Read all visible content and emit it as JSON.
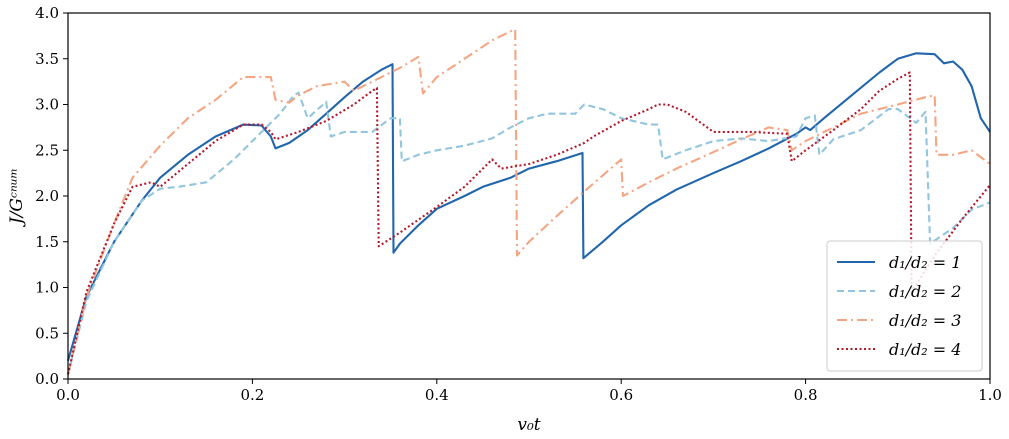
{
  "chart_data": {
    "type": "line",
    "xlabel": "v₀t",
    "ylabel": "J/Gᶜⁿᵘᵐ",
    "xlim": [
      0.0,
      1.0
    ],
    "ylim": [
      0.0,
      4.0
    ],
    "x_ticks": [
      "0.0",
      "0.2",
      "0.4",
      "0.6",
      "0.8",
      "1.0"
    ],
    "y_ticks": [
      "0.0",
      "0.5",
      "1.0",
      "1.5",
      "2.0",
      "2.5",
      "3.0",
      "3.5",
      "4.0"
    ],
    "grid": false,
    "legend_position": "bottom-right",
    "series": [
      {
        "name": "d₁/d₂ = 1",
        "color": "#2166ac",
        "dash": "solid",
        "x": [
          0.0,
          0.02,
          0.05,
          0.08,
          0.1,
          0.13,
          0.16,
          0.19,
          0.21,
          0.22,
          0.225,
          0.24,
          0.26,
          0.28,
          0.3,
          0.32,
          0.34,
          0.352,
          0.353,
          0.36,
          0.38,
          0.4,
          0.43,
          0.45,
          0.48,
          0.5,
          0.53,
          0.558,
          0.559,
          0.58,
          0.6,
          0.63,
          0.66,
          0.7,
          0.73,
          0.76,
          0.79,
          0.8,
          0.805,
          0.82,
          0.85,
          0.88,
          0.9,
          0.92,
          0.94,
          0.95,
          0.96,
          0.97,
          0.98,
          0.99,
          1.0
        ],
        "y": [
          0.2,
          0.9,
          1.5,
          1.95,
          2.2,
          2.45,
          2.65,
          2.78,
          2.77,
          2.65,
          2.52,
          2.58,
          2.72,
          2.9,
          3.08,
          3.25,
          3.38,
          3.44,
          1.38,
          1.48,
          1.68,
          1.86,
          2.0,
          2.1,
          2.2,
          2.3,
          2.38,
          2.47,
          1.32,
          1.5,
          1.68,
          1.9,
          2.07,
          2.25,
          2.38,
          2.52,
          2.68,
          2.75,
          2.72,
          2.85,
          3.1,
          3.35,
          3.5,
          3.56,
          3.55,
          3.45,
          3.47,
          3.38,
          3.2,
          2.85,
          2.7
        ]
      },
      {
        "name": "d₁/d₂ = 2",
        "color": "#92c5de",
        "dash": "dashed",
        "x": [
          0.0,
          0.02,
          0.05,
          0.08,
          0.1,
          0.12,
          0.15,
          0.18,
          0.21,
          0.23,
          0.245,
          0.25,
          0.26,
          0.28,
          0.285,
          0.3,
          0.33,
          0.35,
          0.36,
          0.362,
          0.38,
          0.4,
          0.43,
          0.46,
          0.48,
          0.5,
          0.52,
          0.55,
          0.56,
          0.58,
          0.6,
          0.63,
          0.64,
          0.645,
          0.67,
          0.7,
          0.73,
          0.76,
          0.79,
          0.8,
          0.81,
          0.815,
          0.83,
          0.86,
          0.89,
          0.9,
          0.92,
          0.93,
          0.935,
          0.96,
          0.98,
          1.0
        ],
        "y": [
          0.05,
          0.85,
          1.5,
          1.95,
          2.08,
          2.1,
          2.15,
          2.4,
          2.7,
          2.9,
          3.1,
          3.13,
          2.85,
          3.03,
          2.65,
          2.7,
          2.7,
          2.85,
          2.85,
          2.38,
          2.45,
          2.5,
          2.55,
          2.63,
          2.75,
          2.85,
          2.9,
          2.9,
          3.0,
          2.95,
          2.85,
          2.78,
          2.78,
          2.4,
          2.5,
          2.6,
          2.63,
          2.6,
          2.65,
          2.85,
          2.88,
          2.45,
          2.62,
          2.72,
          2.95,
          2.95,
          2.8,
          2.92,
          1.48,
          1.65,
          1.85,
          1.93
        ]
      },
      {
        "name": "d₁/d₂ = 3",
        "color": "#f4a582",
        "dash": "dashdot",
        "x": [
          0.0,
          0.02,
          0.05,
          0.07,
          0.1,
          0.13,
          0.16,
          0.19,
          0.22,
          0.225,
          0.24,
          0.25,
          0.27,
          0.3,
          0.31,
          0.33,
          0.36,
          0.38,
          0.385,
          0.4,
          0.43,
          0.46,
          0.48,
          0.485,
          0.487,
          0.5,
          0.53,
          0.56,
          0.6,
          0.602,
          0.63,
          0.66,
          0.7,
          0.73,
          0.76,
          0.78,
          0.785,
          0.8,
          0.83,
          0.86,
          0.9,
          0.93,
          0.94,
          0.942,
          0.96,
          0.98,
          1.0
        ],
        "y": [
          0.05,
          0.9,
          1.7,
          2.2,
          2.55,
          2.85,
          3.05,
          3.3,
          3.3,
          3.05,
          3.02,
          3.1,
          3.2,
          3.25,
          3.15,
          3.25,
          3.4,
          3.52,
          3.12,
          3.3,
          3.5,
          3.7,
          3.8,
          3.82,
          1.35,
          1.5,
          1.78,
          2.05,
          2.4,
          2.0,
          2.15,
          2.3,
          2.48,
          2.62,
          2.75,
          2.72,
          2.5,
          2.6,
          2.75,
          2.9,
          3.0,
          3.08,
          3.1,
          2.45,
          2.45,
          2.5,
          2.35
        ]
      },
      {
        "name": "d₁/d₂ = 4",
        "color": "#b2182b",
        "dash": "dotted",
        "x": [
          0.0,
          0.02,
          0.05,
          0.07,
          0.09,
          0.1,
          0.13,
          0.16,
          0.19,
          0.21,
          0.22,
          0.225,
          0.25,
          0.28,
          0.31,
          0.33,
          0.335,
          0.337,
          0.36,
          0.4,
          0.43,
          0.45,
          0.46,
          0.47,
          0.5,
          0.53,
          0.56,
          0.57,
          0.6,
          0.63,
          0.64,
          0.65,
          0.67,
          0.7,
          0.74,
          0.78,
          0.785,
          0.8,
          0.83,
          0.86,
          0.88,
          0.9,
          0.913,
          0.915,
          0.94,
          0.97,
          1.0
        ],
        "y": [
          0.05,
          0.95,
          1.7,
          2.1,
          2.15,
          2.1,
          2.35,
          2.6,
          2.78,
          2.78,
          2.7,
          2.62,
          2.7,
          2.82,
          3.0,
          3.15,
          3.18,
          1.45,
          1.6,
          1.88,
          2.1,
          2.3,
          2.4,
          2.3,
          2.35,
          2.45,
          2.58,
          2.65,
          2.82,
          2.95,
          3.0,
          3.0,
          2.92,
          2.7,
          2.7,
          2.68,
          2.38,
          2.5,
          2.72,
          2.95,
          3.15,
          3.28,
          3.35,
          0.95,
          1.35,
          1.75,
          2.12
        ]
      }
    ]
  }
}
